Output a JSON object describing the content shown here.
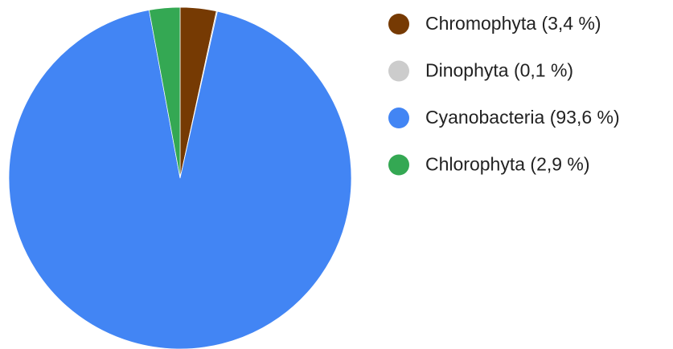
{
  "chart_data": {
    "type": "pie",
    "categories": [
      "Chromophyta (3,4 %)",
      "Dinophyta (0,1 %)",
      "Cyanobacteria (93,6 %)",
      "Chlorophyta (2,9 %)"
    ],
    "values": [
      3.4,
      0.1,
      93.6,
      2.9
    ],
    "colors": [
      "#763a03",
      "#cccccc",
      "#4285f4",
      "#34a853"
    ],
    "legend": "right"
  }
}
